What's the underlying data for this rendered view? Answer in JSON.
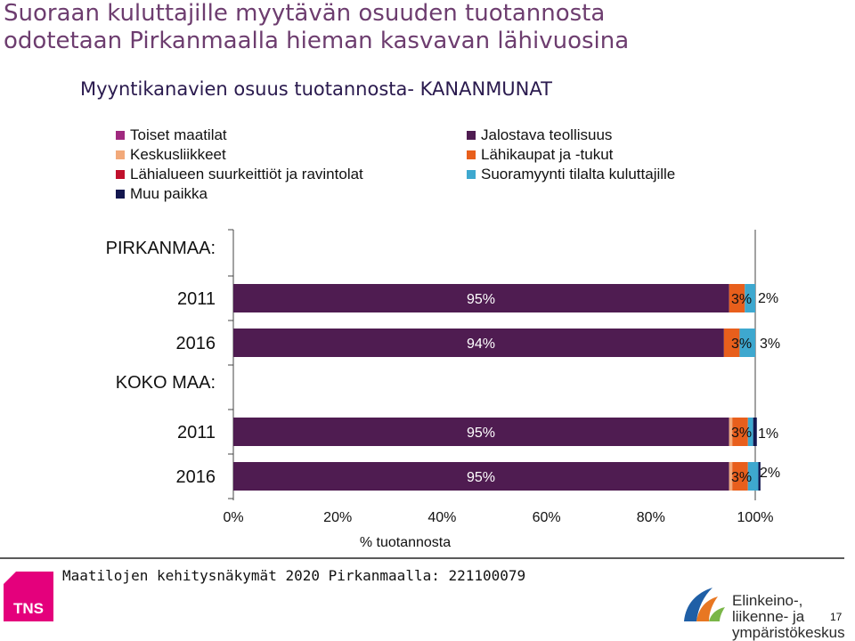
{
  "page": {
    "title_line1": "Suoraan kuluttajille myytävän osuuden tuotannosta",
    "title_line2": "odotetaan Pirkanmaalla hieman kasvavan lähivuosina",
    "footer_text": "Maatilojen kehitysnäkymät 2020 Pirkanmaalla: 221100079",
    "tns_logo": "TNS",
    "ely_line1": "Elinkeino-, liikenne- ja",
    "ely_line2": "ympäristökeskus",
    "page_number": "17"
  },
  "legend": {
    "left": [
      {
        "label": "Toiset maatilat",
        "color": "#a0297f"
      },
      {
        "label": "Keskusliikkeet",
        "color": "#f2a97a"
      },
      {
        "label": "Lähialueen suurkeittiöt ja ravintolat",
        "color": "#c0102c"
      },
      {
        "label": "Muu paikka",
        "color": "#13174f"
      }
    ],
    "right": [
      {
        "label": "Jalostava teollisuus",
        "color": "#4f1c51"
      },
      {
        "label": "Lähikaupat ja -tukut",
        "color": "#e85f1c"
      },
      {
        "label": "Suoramyynti tilalta kuluttajille",
        "color": "#3ea8cf"
      }
    ]
  },
  "chart_data": {
    "type": "bar",
    "orientation": "horizontal",
    "stacked": true,
    "title": "Myyntikanavien osuus tuotannosta- KANANMUNAT",
    "xlabel": "% tuotannosta",
    "xlim": [
      0,
      100
    ],
    "xticks": [
      "0%",
      "20%",
      "40%",
      "60%",
      "80%",
      "100%"
    ],
    "groups": [
      {
        "label": "PIRKANMAA:",
        "rows": [
          "2011",
          "2016"
        ]
      },
      {
        "label": "KOKO MAA:",
        "rows": [
          "2011",
          "2016"
        ]
      }
    ],
    "categories": [
      "2011",
      "2016",
      "2011",
      "2016"
    ],
    "series": [
      {
        "name": "Toiset maatilat",
        "color": "#a0297f",
        "values": [
          0,
          0,
          0,
          0
        ]
      },
      {
        "name": "Jalostava teollisuus",
        "color": "#4f1c51",
        "values": [
          95,
          94,
          95,
          95
        ]
      },
      {
        "name": "Keskusliikkeet",
        "color": "#f2a97a",
        "values": [
          0,
          0,
          0.6,
          0.6
        ]
      },
      {
        "name": "Lähikaupat ja -tukut",
        "color": "#e85f1c",
        "values": [
          3,
          3,
          3,
          3
        ]
      },
      {
        "name": "Lähialueen suurkeittiöt ja ravintolat",
        "color": "#c0102c",
        "values": [
          0,
          0,
          0,
          0
        ]
      },
      {
        "name": "Suoramyynti tilalta kuluttajille",
        "color": "#3ea8cf",
        "values": [
          2,
          3,
          1,
          2
        ]
      },
      {
        "name": "Muu paikka",
        "color": "#13174f",
        "values": [
          0,
          0,
          0.7,
          0.4
        ]
      }
    ],
    "data_labels": [
      {
        "row": 0,
        "center": "95%",
        "right1": "3%",
        "right2": "2%"
      },
      {
        "row": 1,
        "center": "94%",
        "right1": "3%",
        "right2": "3%"
      },
      {
        "row": 2,
        "center": "95%",
        "right1": "3%",
        "right2": "1%"
      },
      {
        "row": 3,
        "center": "95%",
        "right1": "3%",
        "right2": "2%"
      }
    ]
  }
}
